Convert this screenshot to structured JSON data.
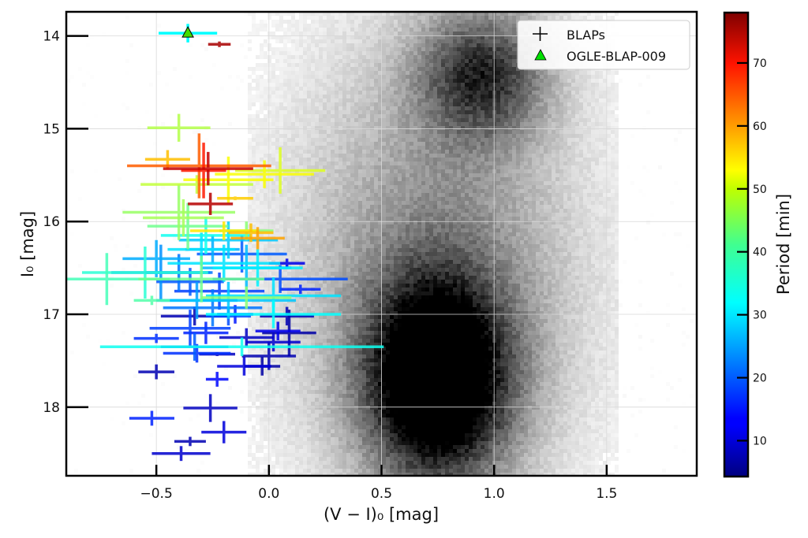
{
  "chart_data": {
    "type": "scatter",
    "title": "",
    "xlabel": "(V − I)₀ [mag]",
    "ylabel": "I₀ [mag]",
    "xlim": [
      -0.9,
      1.9
    ],
    "ylim": [
      18.74,
      13.74
    ],
    "y_inverted": true,
    "grid": true,
    "xticks": [
      -0.5,
      0.0,
      0.5,
      1.0,
      1.5
    ],
    "xtick_labels": [
      "−0.5",
      "0.0",
      "0.5",
      "1.0",
      "1.5"
    ],
    "yticks": [
      14,
      15,
      16,
      17,
      18
    ],
    "ytick_labels": [
      "14",
      "15",
      "16",
      "17",
      "18"
    ],
    "legend": {
      "position": "upper right",
      "entries": [
        {
          "label": "BLAPs",
          "marker": "plus",
          "color": "#000000"
        },
        {
          "label": "OGLE-BLAP-009",
          "marker": "triangle",
          "color": "#00e000"
        }
      ]
    },
    "colorbar": {
      "label": "Period [min]",
      "colormap": "jet",
      "range": [
        4.3,
        78
      ],
      "ticks": [
        10,
        20,
        30,
        40,
        50,
        60,
        70
      ]
    },
    "background_density": {
      "description": "2D histogram of field stars (grayscale, log density)",
      "components": [
        {
          "name": "main-sequence/turnoff",
          "cx": 0.75,
          "cy": 17.7,
          "sx": 0.22,
          "sy": 0.75,
          "amp": 1.0
        },
        {
          "name": "giant branch",
          "cx": 0.95,
          "cy": 14.4,
          "sx": 0.2,
          "sy": 0.5,
          "amp": 0.55
        },
        {
          "name": "diffuse halo",
          "cx": 0.75,
          "cy": 16.5,
          "sx": 0.45,
          "sy": 1.8,
          "amp": 0.35
        }
      ]
    },
    "special_point": {
      "name": "OGLE-BLAP-009",
      "x": -0.36,
      "y": 13.97,
      "xerr": 0.13,
      "yerr": 0.1,
      "period": 31.9
    },
    "series": [
      {
        "name": "BLAPs",
        "points": [
          {
            "x": -0.22,
            "y": 14.09,
            "xerr": 0.05,
            "yerr": 0.03,
            "period": 75
          },
          {
            "x": -0.4,
            "y": 14.99,
            "xerr": 0.14,
            "yerr": 0.15,
            "period": 45
          },
          {
            "x": -0.31,
            "y": 15.4,
            "xerr": 0.32,
            "yerr": 0.35,
            "period": 62
          },
          {
            "x": -0.45,
            "y": 15.33,
            "xerr": 0.1,
            "yerr": 0.1,
            "period": 55
          },
          {
            "x": -0.27,
            "y": 15.43,
            "xerr": 0.2,
            "yerr": 0.18,
            "period": 73
          },
          {
            "x": -0.29,
            "y": 15.45,
            "xerr": 0.1,
            "yerr": 0.3,
            "period": 67
          },
          {
            "x": -0.02,
            "y": 15.49,
            "xerr": 0.22,
            "yerr": 0.15,
            "period": 50
          },
          {
            "x": 0.05,
            "y": 15.45,
            "xerr": 0.2,
            "yerr": 0.25,
            "period": 48
          },
          {
            "x": -0.18,
            "y": 15.55,
            "xerr": 0.2,
            "yerr": 0.25,
            "period": 50
          },
          {
            "x": -0.32,
            "y": 15.6,
            "xerr": 0.25,
            "yerr": 0.1,
            "period": 46
          },
          {
            "x": -0.15,
            "y": 15.75,
            "xerr": 0.08,
            "yerr": 0.02,
            "period": 54
          },
          {
            "x": -0.26,
            "y": 15.81,
            "xerr": 0.1,
            "yerr": 0.12,
            "period": 74
          },
          {
            "x": -0.4,
            "y": 15.9,
            "xerr": 0.25,
            "yerr": 0.3,
            "period": 43
          },
          {
            "x": -0.38,
            "y": 15.96,
            "xerr": 0.18,
            "yerr": 0.2,
            "period": 44
          },
          {
            "x": -0.36,
            "y": 16.05,
            "xerr": 0.18,
            "yerr": 0.25,
            "period": 40
          },
          {
            "x": -0.2,
            "y": 16.1,
            "xerr": 0.15,
            "yerr": 0.1,
            "period": 52
          },
          {
            "x": -0.1,
            "y": 16.1,
            "xerr": 0.12,
            "yerr": 0.1,
            "period": 42
          },
          {
            "x": -0.08,
            "y": 16.12,
            "xerr": 0.1,
            "yerr": 0.1,
            "period": 55
          },
          {
            "x": -0.28,
            "y": 16.15,
            "xerr": 0.2,
            "yerr": 0.2,
            "period": 33
          },
          {
            "x": -0.18,
            "y": 16.2,
            "xerr": 0.22,
            "yerr": 0.2,
            "period": 28
          },
          {
            "x": -0.05,
            "y": 16.18,
            "xerr": 0.12,
            "yerr": 0.12,
            "period": 57
          },
          {
            "x": -0.3,
            "y": 16.3,
            "xerr": 0.15,
            "yerr": 0.18,
            "period": 30
          },
          {
            "x": -0.25,
            "y": 16.3,
            "xerr": 0.12,
            "yerr": 0.15,
            "period": 26
          },
          {
            "x": -0.12,
            "y": 16.35,
            "xerr": 0.2,
            "yerr": 0.2,
            "period": 20
          },
          {
            "x": -0.5,
            "y": 16.4,
            "xerr": 0.15,
            "yerr": 0.2,
            "period": 26
          },
          {
            "x": -0.48,
            "y": 16.55,
            "xerr": 0.22,
            "yerr": 0.3,
            "period": 24
          },
          {
            "x": -0.4,
            "y": 16.55,
            "xerr": 0.15,
            "yerr": 0.2,
            "period": 22
          },
          {
            "x": -0.2,
            "y": 16.45,
            "xerr": 0.25,
            "yerr": 0.2,
            "period": 30
          },
          {
            "x": -0.1,
            "y": 16.5,
            "xerr": 0.2,
            "yerr": 0.25,
            "period": 27
          },
          {
            "x": -0.05,
            "y": 16.5,
            "xerr": 0.2,
            "yerr": 0.2,
            "period": 31
          },
          {
            "x": 0.08,
            "y": 16.45,
            "xerr": 0.08,
            "yerr": 0.05,
            "period": 12
          },
          {
            "x": -0.55,
            "y": 16.55,
            "xerr": 0.28,
            "yerr": 0.28,
            "period": 35
          },
          {
            "x": -0.72,
            "y": 16.62,
            "xerr": 0.28,
            "yerr": 0.28,
            "period": 37
          },
          {
            "x": -0.3,
            "y": 16.62,
            "xerr": 0.28,
            "yerr": 0.25,
            "period": 40
          },
          {
            "x": -0.35,
            "y": 16.65,
            "xerr": 0.15,
            "yerr": 0.15,
            "period": 20
          },
          {
            "x": 0.05,
            "y": 16.62,
            "xerr": 0.3,
            "yerr": 0.15,
            "period": 19
          },
          {
            "x": -0.22,
            "y": 16.75,
            "xerr": 0.2,
            "yerr": 0.2,
            "period": 18
          },
          {
            "x": 0.14,
            "y": 16.73,
            "xerr": 0.09,
            "yerr": 0.05,
            "period": 16
          },
          {
            "x": -0.18,
            "y": 16.85,
            "xerr": 0.3,
            "yerr": 0.2,
            "period": 28
          },
          {
            "x": -0.32,
            "y": 16.85,
            "xerr": 0.18,
            "yerr": 0.2,
            "period": 25
          },
          {
            "x": -0.1,
            "y": 16.82,
            "xerr": 0.2,
            "yerr": 0.12,
            "period": 42
          },
          {
            "x": 0.02,
            "y": 16.8,
            "xerr": 0.3,
            "yerr": 0.2,
            "period": 30
          },
          {
            "x": -0.52,
            "y": 16.85,
            "xerr": 0.08,
            "yerr": 0.05,
            "period": 38
          },
          {
            "x": -0.25,
            "y": 16.93,
            "xerr": 0.22,
            "yerr": 0.2,
            "period": 22
          },
          {
            "x": -0.33,
            "y": 17.02,
            "xerr": 0.15,
            "yerr": 0.1,
            "period": 8
          },
          {
            "x": -0.18,
            "y": 17.02,
            "xerr": 0.1,
            "yerr": 0.1,
            "period": 19
          },
          {
            "x": -0.15,
            "y": 17.0,
            "xerr": 0.08,
            "yerr": 0.1,
            "period": 15
          },
          {
            "x": 0.08,
            "y": 17.02,
            "xerr": 0.12,
            "yerr": 0.1,
            "period": 8
          },
          {
            "x": 0.02,
            "y": 17.0,
            "xerr": 0.3,
            "yerr": 0.15,
            "period": 32
          },
          {
            "x": -0.35,
            "y": 17.15,
            "xerr": 0.18,
            "yerr": 0.2,
            "period": 18
          },
          {
            "x": -0.28,
            "y": 17.2,
            "xerr": 0.1,
            "yerr": 0.12,
            "period": 16
          },
          {
            "x": 0.04,
            "y": 17.18,
            "xerr": 0.1,
            "yerr": 0.1,
            "period": 12
          },
          {
            "x": 0.09,
            "y": 17.2,
            "xerr": 0.12,
            "yerr": 0.25,
            "period": 7
          },
          {
            "x": -0.5,
            "y": 17.26,
            "xerr": 0.1,
            "yerr": 0.05,
            "period": 17
          },
          {
            "x": -0.1,
            "y": 17.25,
            "xerr": 0.12,
            "yerr": 0.1,
            "period": 9
          },
          {
            "x": 0.02,
            "y": 17.3,
            "xerr": 0.12,
            "yerr": 0.1,
            "period": 10
          },
          {
            "x": -0.12,
            "y": 17.35,
            "xerr": 0.63,
            "yerr": 0.1,
            "period": 33
          },
          {
            "x": -0.33,
            "y": 17.35,
            "xerr": 0.15,
            "yerr": 0.15,
            "period": 20
          },
          {
            "x": -0.32,
            "y": 17.42,
            "xerr": 0.15,
            "yerr": 0.1,
            "period": 17
          },
          {
            "x": -0.23,
            "y": 17.43,
            "xerr": 0.08,
            "yerr": 0.02,
            "period": 9
          },
          {
            "x": 0.0,
            "y": 17.45,
            "xerr": 0.12,
            "yerr": 0.15,
            "period": 8
          },
          {
            "x": -0.11,
            "y": 17.56,
            "xerr": 0.12,
            "yerr": 0.1,
            "period": 11
          },
          {
            "x": -0.03,
            "y": 17.56,
            "xerr": 0.08,
            "yerr": 0.1,
            "period": 7
          },
          {
            "x": -0.5,
            "y": 17.62,
            "xerr": 0.08,
            "yerr": 0.08,
            "period": 8
          },
          {
            "x": -0.23,
            "y": 17.7,
            "xerr": 0.05,
            "yerr": 0.08,
            "period": 14
          },
          {
            "x": -0.26,
            "y": 18.01,
            "xerr": 0.12,
            "yerr": 0.15,
            "period": 9
          },
          {
            "x": -0.52,
            "y": 18.12,
            "xerr": 0.1,
            "yerr": 0.08,
            "period": 16
          },
          {
            "x": -0.2,
            "y": 18.27,
            "xerr": 0.1,
            "yerr": 0.12,
            "period": 11
          },
          {
            "x": -0.35,
            "y": 18.37,
            "xerr": 0.07,
            "yerr": 0.05,
            "period": 8
          },
          {
            "x": -0.39,
            "y": 18.5,
            "xerr": 0.13,
            "yerr": 0.08,
            "period": 10
          }
        ]
      }
    ]
  }
}
